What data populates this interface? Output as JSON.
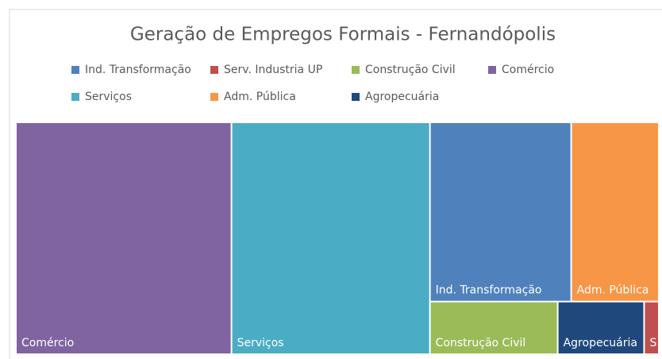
{
  "chart_data": {
    "type": "treemap",
    "title": "Geração de Empregos Formais  - Fernandópolis",
    "categories": [
      "Ind. Transformação",
      "Serv. Industria UP",
      "Construção Civil",
      "Comércio",
      "Serviços",
      "Adm. Pública",
      "Agropecuária"
    ],
    "values": [
      3950,
      121,
      1050,
      7800,
      7180,
      2450,
      710
    ],
    "colors": [
      "#4f81bd",
      "#c0504d",
      "#9bbb59",
      "#8064a2",
      "#4bacc6",
      "#f79646",
      "#1f497d"
    ]
  }
}
